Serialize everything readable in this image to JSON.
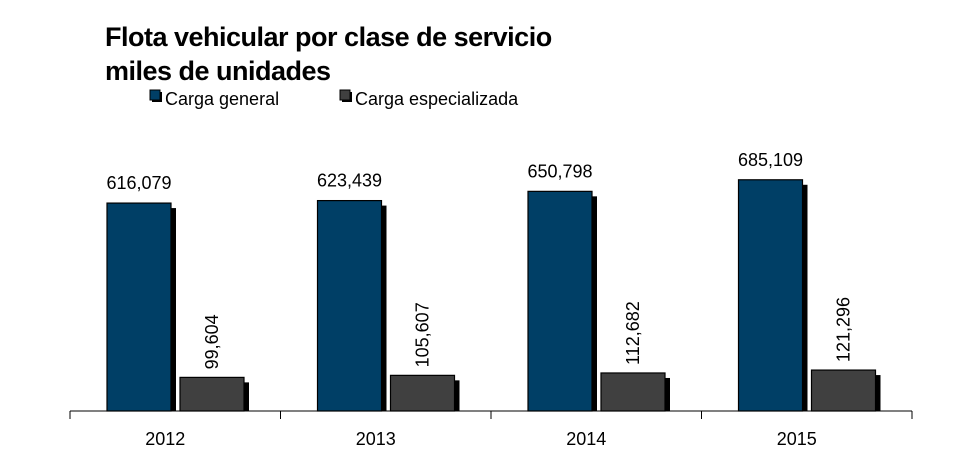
{
  "chart_data": {
    "type": "bar",
    "title": "Flota vehicular por clase de servicio",
    "subtitle": "miles de unidades",
    "categories": [
      "2012",
      "2013",
      "2014",
      "2015"
    ],
    "series": [
      {
        "name": "Carga general",
        "values": [
          616079,
          623439,
          650798,
          685109
        ],
        "color": "#003F66"
      },
      {
        "name": "Carga especializada",
        "values": [
          99604,
          105607,
          112682,
          121296
        ],
        "color": "#404040"
      }
    ],
    "data_labels": {
      "Carga general": [
        "616,079",
        "623,439",
        "650,798",
        "685,109"
      ],
      "Carga especializada": [
        "99,604",
        "105,607",
        "112,682",
        "121,296"
      ]
    },
    "ylim": [
      0,
      800000
    ],
    "legend_position": "top-left",
    "grid": false,
    "xlabel": "",
    "ylabel": ""
  }
}
